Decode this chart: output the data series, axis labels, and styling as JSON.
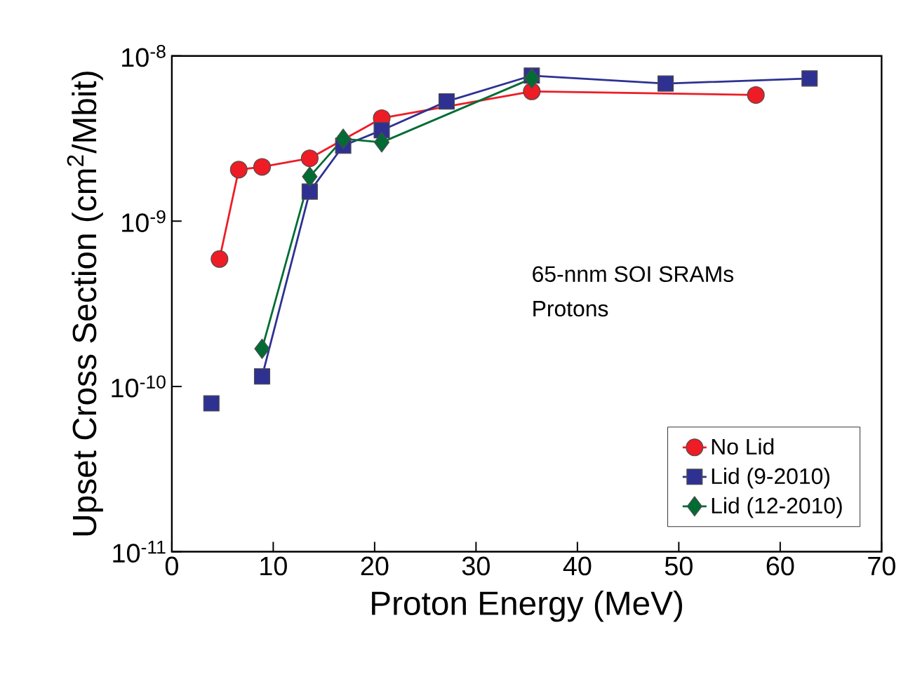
{
  "chart_data": {
    "type": "line",
    "xlabel": "Proton Energy (MeV)",
    "ylabel": "Upset Cross Section (cm$^{2}$/Mbit)",
    "annotations": [
      "65-nnm SOI SRAMs",
      "Protons"
    ],
    "log": "y",
    "xlim": [
      0,
      70
    ],
    "xticks": [
      0,
      10,
      20,
      30,
      40,
      50,
      60,
      70
    ],
    "ylim": [
      1e-11,
      1e-08
    ],
    "yticks": [
      {
        "value": 1e-11,
        "label": "10$^{-11}$"
      },
      {
        "value": 1e-10,
        "label": "10$^{-10}$"
      },
      {
        "value": 1e-09,
        "label": "10$^{-9}$"
      },
      {
        "value": 1e-08,
        "label": "10$^{-8}$"
      }
    ],
    "grid": false,
    "legend": "bottom right",
    "line_style": "solid",
    "series": [
      {
        "name": "No Lid",
        "color": "#ee1c25",
        "marker": "circle",
        "x": [
          4.7,
          6.6,
          8.9,
          13.6,
          20.7,
          35.5,
          57.6
        ],
        "values": [
          5.9e-10,
          2.05e-09,
          2.13e-09,
          2.4e-09,
          4.2e-09,
          6.1e-09,
          5.8e-09
        ]
      },
      {
        "name": "Lid (9-2010)",
        "color": "#2e3192",
        "marker": "square",
        "x": [
          8.9,
          13.6,
          16.9,
          20.7,
          27.1,
          35.5,
          48.7,
          62.9
        ],
        "values": [
          1.15e-10,
          1.51e-09,
          2.86e-09,
          3.55e-09,
          5.3e-09,
          7.6e-09,
          6.8e-09,
          7.3e-09
        ]
      },
      {
        "name": "Lid (12-2010)",
        "color": "#006c34",
        "marker": "diamond",
        "x": [
          8.9,
          13.6,
          16.9,
          20.7,
          35.5
        ],
        "values": [
          1.69e-10,
          1.86e-09,
          3.15e-09,
          3e-09,
          7.3e-09
        ]
      },
      {
        "type": "scatter",
        "color": "#2e3192",
        "marker": "square",
        "x": [
          3.9
        ],
        "values": [
          7.9e-11
        ]
      }
    ]
  }
}
